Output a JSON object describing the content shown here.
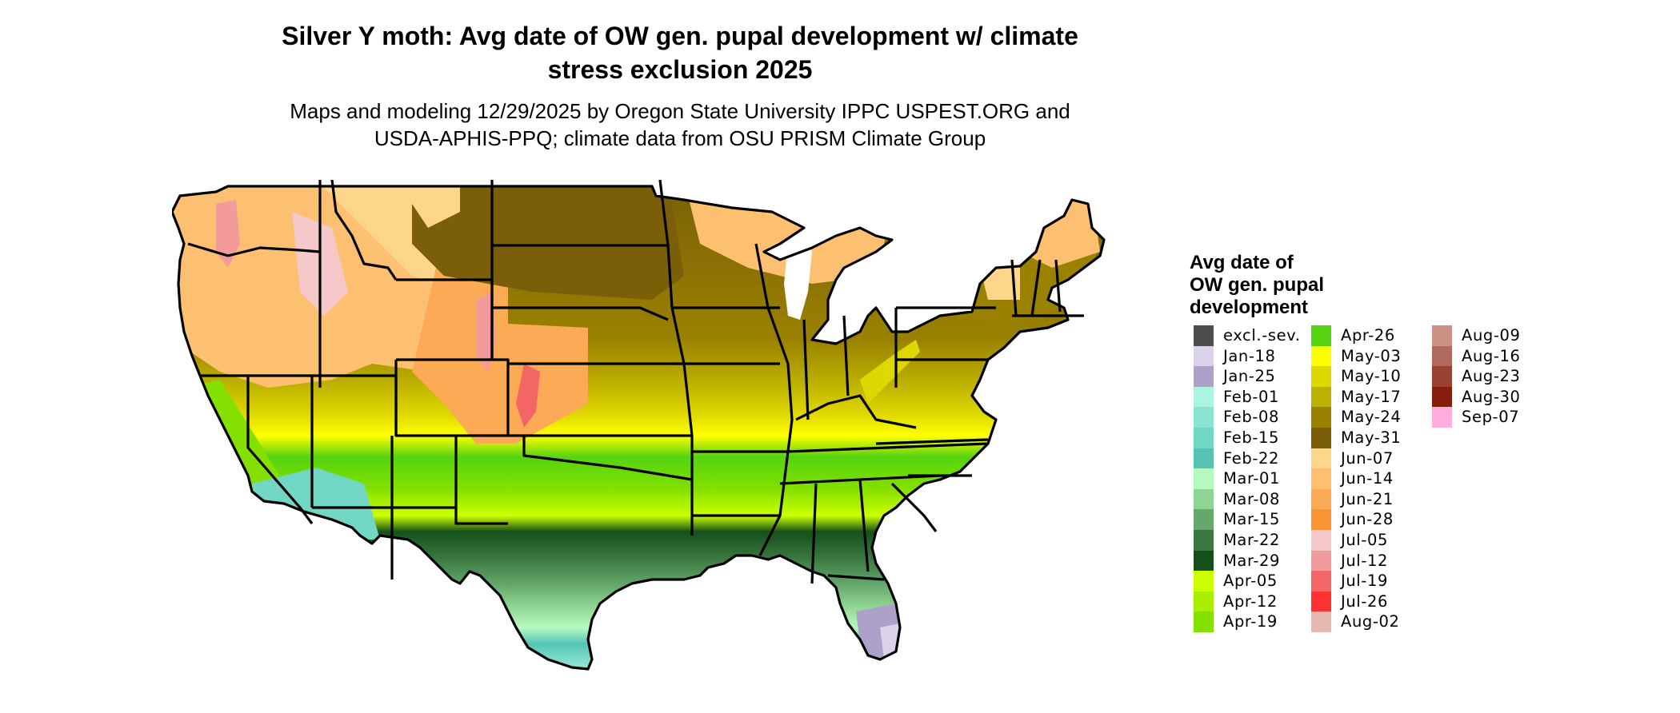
{
  "title": "Silver Y moth: Avg date of OW gen. pupal development w/ climate stress exclusion 2025",
  "title_lines": [
    "Silver Y moth: Avg date of OW gen. pupal development w/ climate",
    "stress exclusion 2025"
  ],
  "subtitle_lines": [
    "Maps and modeling 12/29/2025 by Oregon State University IPPC USPEST.ORG and",
    "USDA-APHIS-PPQ; climate data from OSU PRISM Climate Group"
  ],
  "map": {
    "region": "Contiguous United States",
    "description": "Raster of predicted average date of overwintering-generation pupal development, with state borders",
    "color_key": {
      "excl": "#4d4d4d",
      "jan18": "#d9d2e9",
      "jan25": "#ada0c9",
      "feb01": "#abf5e0",
      "feb08": "#8ce3d0",
      "feb15": "#72d6c4",
      "feb22": "#55c4b5",
      "mar01": "#b6f9c0",
      "mar08": "#90d494",
      "mar15": "#66a86c",
      "mar22": "#3a783f",
      "mar29": "#15501a",
      "apr05": "#ccff00",
      "apr12": "#a8ee00",
      "apr19": "#84e000",
      "apr26": "#55d310",
      "may03": "#ffff00",
      "may10": "#dfd800",
      "may17": "#bcb000",
      "may24": "#9a8200",
      "may31": "#7a5e08",
      "jun07": "#fdd68c",
      "jun14": "#fdc070",
      "jun21": "#fcaa55",
      "jun28": "#fb9533",
      "jul05": "#f5c9c9",
      "jul12": "#f39b9b",
      "jul19": "#f46666",
      "jul26": "#fd3333",
      "aug02": "#e6b8b0",
      "aug09": "#cc9183",
      "aug16": "#b06a5c",
      "aug23": "#994232",
      "aug30": "#851e0a",
      "sep07": "#ffaedd"
    }
  },
  "legend": {
    "title_lines": [
      "Avg date of",
      "OW gen. pupal",
      "development"
    ],
    "columns": [
      [
        {
          "label": "excl.-sev.",
          "color": "#4d4d4d"
        },
        {
          "label": "Jan-18",
          "color": "#d9d2e9"
        },
        {
          "label": "Jan-25",
          "color": "#ada0c9"
        },
        {
          "label": "Feb-01",
          "color": "#abf5e0"
        },
        {
          "label": "Feb-08",
          "color": "#8ce3d0"
        },
        {
          "label": "Feb-15",
          "color": "#72d6c4"
        },
        {
          "label": "Feb-22",
          "color": "#55c4b5"
        },
        {
          "label": "Mar-01",
          "color": "#b6f9c0"
        },
        {
          "label": "Mar-08",
          "color": "#90d494"
        },
        {
          "label": "Mar-15",
          "color": "#66a86c"
        },
        {
          "label": "Mar-22",
          "color": "#3a783f"
        },
        {
          "label": "Mar-29",
          "color": "#15501a"
        },
        {
          "label": "Apr-05",
          "color": "#ccff00"
        },
        {
          "label": "Apr-12",
          "color": "#a8ee00"
        },
        {
          "label": "Apr-19",
          "color": "#84e000"
        }
      ],
      [
        {
          "label": "Apr-26",
          "color": "#55d310"
        },
        {
          "label": "May-03",
          "color": "#ffff00"
        },
        {
          "label": "May-10",
          "color": "#dfd800"
        },
        {
          "label": "May-17",
          "color": "#bcb000"
        },
        {
          "label": "May-24",
          "color": "#9a8200"
        },
        {
          "label": "May-31",
          "color": "#7a5e08"
        },
        {
          "label": "Jun-07",
          "color": "#fdd68c"
        },
        {
          "label": "Jun-14",
          "color": "#fdc070"
        },
        {
          "label": "Jun-21",
          "color": "#fcaa55"
        },
        {
          "label": "Jun-28",
          "color": "#fb9533"
        },
        {
          "label": "Jul-05",
          "color": "#f5c9c9"
        },
        {
          "label": "Jul-12",
          "color": "#f39b9b"
        },
        {
          "label": "Jul-19",
          "color": "#f46666"
        },
        {
          "label": "Jul-26",
          "color": "#fd3333"
        },
        {
          "label": "Aug-02",
          "color": "#e6b8b0"
        }
      ],
      [
        {
          "label": "Aug-09",
          "color": "#cc9183"
        },
        {
          "label": "Aug-16",
          "color": "#b06a5c"
        },
        {
          "label": "Aug-23",
          "color": "#994232"
        },
        {
          "label": "Aug-30",
          "color": "#851e0a"
        },
        {
          "label": "Sep-07",
          "color": "#ffaedd"
        }
      ]
    ]
  }
}
